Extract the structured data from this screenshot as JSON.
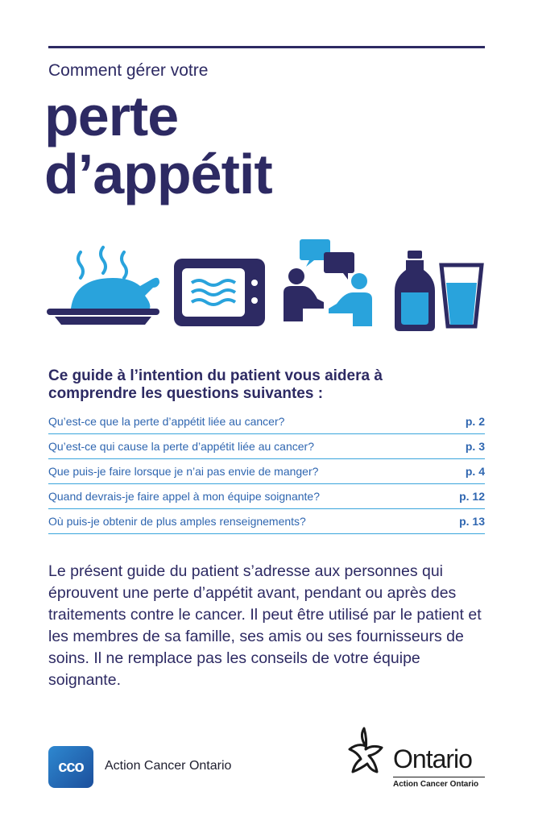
{
  "header": {
    "subtitle": "Comment gérer votre",
    "title_line1": "perte",
    "title_line2": "d’appétit"
  },
  "icons": [
    "steaming-roast-chicken-icon",
    "microwave-icon",
    "conversation-icon",
    "milk-bottle-icon",
    "water-glass-icon"
  ],
  "colors": {
    "navy": "#2d2a63",
    "accent_blue": "#29a3dc",
    "link_blue": "#2f66b0"
  },
  "intro": {
    "heading": "Ce guide à l’intention du patient vous aidera à comprendre les questions suivantes :"
  },
  "toc": [
    {
      "question": "Qu’est-ce que la perte d’appétit liée au cancer?",
      "page": "p. 2"
    },
    {
      "question": "Qu’est-ce qui cause la perte d’appétit liée au cancer?",
      "page": "p. 3"
    },
    {
      "question": "Que puis-je faire lorsque je n’ai pas envie de manger?",
      "page": "p. 4"
    },
    {
      "question": "Quand devrais-je faire appel à mon équipe soignante?",
      "page": "p. 12"
    },
    {
      "question": "Où puis-je obtenir de plus amples renseignements?",
      "page": "p. 13"
    }
  ],
  "body": {
    "text": "Le présent guide du patient s’adresse aux personnes qui éprouvent une perte d’appétit avant, pendant ou après des traitements contre le cancer. Il peut être utilisé par le patient et les membres de sa famille, ses amis ou ses fournisseurs de soins. Il ne remplace pas les conseils de votre équipe soignante."
  },
  "footer": {
    "cco_logo_text": "cco",
    "cco_name": "Action Cancer Ontario",
    "ontario_word": "Ontario",
    "ontario_sub": "Action Cancer Ontario"
  }
}
